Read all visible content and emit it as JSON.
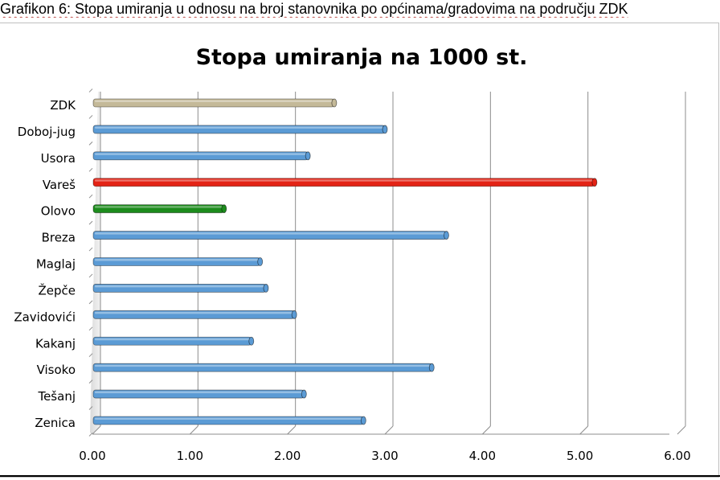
{
  "caption": "Grafikon 6: Stopa umiranja u odnosu na broj stanovnika po općinama/gradovima na području ZDK",
  "chart_data": {
    "type": "bar",
    "orientation": "horizontal",
    "title": "Stopa umiranja na 1000 st.",
    "xlabel": "",
    "ylabel": "",
    "xlim": [
      0,
      6
    ],
    "x_ticks": [
      "0.00",
      "1.00",
      "2.00",
      "3.00",
      "4.00",
      "5.00",
      "6.00"
    ],
    "grid": true,
    "legend": "none",
    "categories": [
      "ZDK",
      "Doboj-jug",
      "Usora",
      "Vareš",
      "Olovo",
      "Breza",
      "Maglaj",
      "Žepče",
      "Zavidovići",
      "Kakanj",
      "Visoko",
      "Tešanj",
      "Zenica"
    ],
    "values": [
      2.48,
      3.0,
      2.21,
      5.15,
      1.35,
      3.63,
      1.72,
      1.78,
      2.07,
      1.63,
      3.48,
      2.17,
      2.78
    ],
    "colors": [
      "#c4b998",
      "#5b9bd5",
      "#5b9bd5",
      "#e32315",
      "#1c8c1c",
      "#5b9bd5",
      "#5b9bd5",
      "#5b9bd5",
      "#5b9bd5",
      "#5b9bd5",
      "#5b9bd5",
      "#5b9bd5",
      "#5b9bd5"
    ]
  }
}
